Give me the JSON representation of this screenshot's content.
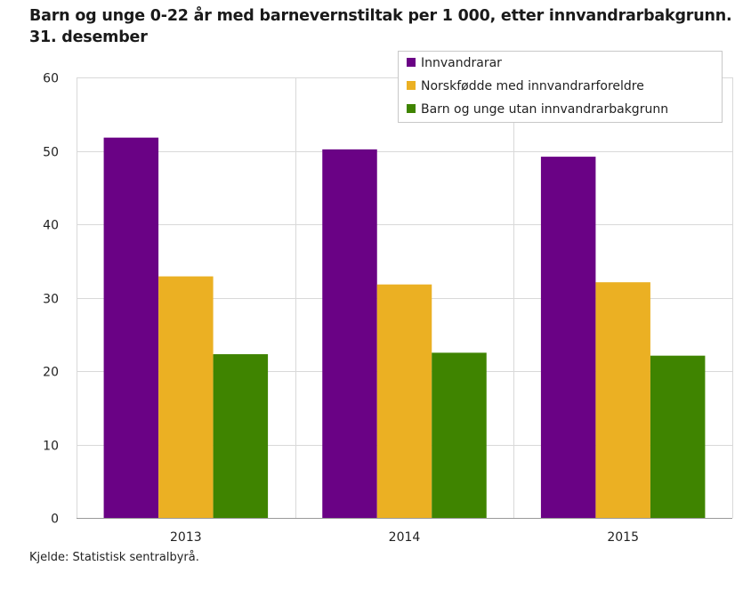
{
  "title_line1": "Barn og unge 0-22 år med barnevernstiltak per 1 000, etter innvandrarbakgrunn.",
  "title_line2": "31. desember",
  "source": "Kjelde: Statistisk sentralbyrå.",
  "chart_data": {
    "type": "bar",
    "categories": [
      "2013",
      "2014",
      "2015"
    ],
    "series": [
      {
        "name": "Innvandrarar",
        "color": "#6a0285",
        "values": [
          51.8,
          50.2,
          49.2
        ]
      },
      {
        "name": "Norskfødde med innvandrarforeldre",
        "color": "#ebb023",
        "values": [
          32.9,
          31.8,
          32.1
        ]
      },
      {
        "name": "Barn og unge utan innvandrarbakgrunn",
        "color": "#3f8400",
        "values": [
          22.3,
          22.5,
          22.1
        ]
      }
    ],
    "ylim": [
      0,
      60
    ],
    "yticks": [
      0,
      10,
      20,
      30,
      40,
      50,
      60
    ],
    "grid": true,
    "legend_position": "top-right"
  }
}
